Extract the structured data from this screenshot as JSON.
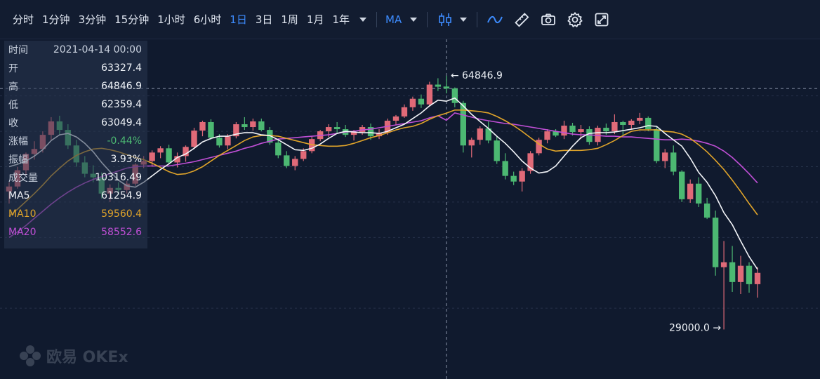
{
  "toolbar": {
    "timeframes": [
      "分时",
      "1分钟",
      "3分钟",
      "15分钟",
      "1小时",
      "6小时",
      "1日",
      "3日",
      "1周",
      "1月",
      "1年"
    ],
    "active_timeframe": "1日",
    "indicator_label": "MA",
    "icons": [
      "chart-type-candle-icon",
      "line-draw-icon",
      "ruler-icon",
      "camera-icon",
      "settings-gear-icon",
      "fullscreen-icon"
    ]
  },
  "info_panel": {
    "time_label": "时间",
    "time_value": "2021-04-14 00:00",
    "open_label": "开",
    "open_value": "63327.4",
    "high_label": "高",
    "high_value": "64846.9",
    "low_label": "低",
    "low_value": "62359.4",
    "close_label": "收",
    "close_value": "63049.4",
    "change_label": "涨幅",
    "change_value": "-0.44%",
    "amplitude_label": "振幅",
    "amplitude_value": "3.93%",
    "volume_label": "成交量",
    "volume_value": "10316.49",
    "ma5_label": "MA5",
    "ma5_value": "61254.9",
    "ma10_label": "MA10",
    "ma10_value": "59560.4",
    "ma20_label": "MA20",
    "ma20_value": "58552.6"
  },
  "chart": {
    "high_annotation": "← 64846.9",
    "low_annotation": "29000.0 →"
  },
  "colors": {
    "up": "#e06a78",
    "down": "#4cb872",
    "ma5": "#f2f4f8",
    "ma10": "#e0a42a",
    "ma20": "#c04fd6",
    "active": "#3d8bfd"
  },
  "watermark": "欧易 OKEx",
  "chart_data": {
    "type": "candlestick",
    "ylim": [
      22000,
      70000
    ],
    "candles": [
      [
        48500,
        49800,
        46800,
        49200
      ],
      [
        49200,
        52000,
        48900,
        51500
      ],
      [
        51500,
        54000,
        50800,
        53800
      ],
      [
        53800,
        55600,
        53000,
        54500
      ],
      [
        54500,
        57000,
        54000,
        56500
      ],
      [
        56500,
        59000,
        55800,
        58400
      ],
      [
        58400,
        59200,
        56500,
        57200
      ],
      [
        57200,
        58000,
        54500,
        55000
      ],
      [
        55000,
        55800,
        52000,
        52600
      ],
      [
        52600,
        53500,
        50500,
        51000
      ],
      [
        51000,
        52200,
        49800,
        50500
      ],
      [
        50500,
        51200,
        47500,
        48200
      ],
      [
        48200,
        49500,
        47000,
        49000
      ],
      [
        49000,
        49800,
        48000,
        48700
      ],
      [
        48700,
        50000,
        48200,
        49600
      ],
      [
        49600,
        52500,
        49300,
        52300
      ],
      [
        52300,
        53500,
        51800,
        52800
      ],
      [
        52800,
        54300,
        52000,
        54000
      ],
      [
        54000,
        54900,
        53200,
        54600
      ],
      [
        54600,
        55100,
        52300,
        52600
      ],
      [
        52600,
        54000,
        51900,
        53500
      ],
      [
        53500,
        55000,
        52700,
        54800
      ],
      [
        54800,
        57500,
        54500,
        57100
      ],
      [
        57100,
        58500,
        56300,
        58300
      ],
      [
        58300,
        58700,
        55800,
        56100
      ],
      [
        56100,
        56600,
        54700,
        55000
      ],
      [
        55000,
        56600,
        54500,
        56300
      ],
      [
        56300,
        58300,
        56000,
        58000
      ],
      [
        58000,
        59000,
        57200,
        57600
      ],
      [
        57600,
        58800,
        57100,
        58400
      ],
      [
        58400,
        58800,
        57000,
        57200
      ],
      [
        57200,
        57600,
        55100,
        55400
      ],
      [
        55400,
        56000,
        53200,
        53600
      ],
      [
        53600,
        54200,
        51800,
        52100
      ],
      [
        52100,
        53500,
        51500,
        53100
      ],
      [
        53100,
        54600,
        52800,
        54200
      ],
      [
        54200,
        56300,
        53900,
        55900
      ],
      [
        55900,
        57200,
        55600,
        57000
      ],
      [
        57000,
        58000,
        56200,
        57600
      ],
      [
        57600,
        58300,
        56800,
        57300
      ],
      [
        57300,
        57900,
        56200,
        56500
      ],
      [
        56500,
        57200,
        55700,
        56900
      ],
      [
        56900,
        57900,
        56500,
        57600
      ],
      [
        57600,
        58100,
        55800,
        56300
      ],
      [
        56300,
        57300,
        55900,
        56800
      ],
      [
        56800,
        58800,
        56500,
        58500
      ],
      [
        58500,
        59300,
        57900,
        59100
      ],
      [
        59100,
        60800,
        58900,
        60400
      ],
      [
        60400,
        61900,
        59900,
        61600
      ],
      [
        61600,
        62200,
        60300,
        60800
      ],
      [
        60800,
        64000,
        60500,
        63600
      ],
      [
        63600,
        64500,
        62700,
        63300
      ],
      [
        63327.4,
        64846.9,
        62359.4,
        63049.4
      ],
      [
        63049,
        63200,
        60400,
        61000
      ],
      [
        61000,
        61300,
        54000,
        55000
      ],
      [
        55000,
        56100,
        53300,
        55800
      ],
      [
        55800,
        57700,
        55100,
        57400
      ],
      [
        57400,
        58400,
        55300,
        55700
      ],
      [
        55700,
        56300,
        52400,
        52800
      ],
      [
        52800,
        53900,
        50200,
        50700
      ],
      [
        50700,
        51300,
        49400,
        49900
      ],
      [
        49900,
        51800,
        48500,
        51400
      ],
      [
        51400,
        54200,
        51000,
        53900
      ],
      [
        53900,
        56100,
        53600,
        55800
      ],
      [
        55800,
        57300,
        55300,
        57000
      ],
      [
        57000,
        57300,
        56200,
        56400
      ],
      [
        56400,
        58500,
        55900,
        57800
      ],
      [
        57800,
        58200,
        56400,
        56900
      ],
      [
        56900,
        57900,
        55900,
        57300
      ],
      [
        57300,
        57700,
        55100,
        55500
      ],
      [
        55500,
        57800,
        55000,
        57500
      ],
      [
        57500,
        58100,
        56500,
        57000
      ],
      [
        57000,
        59400,
        56600,
        58300
      ],
      [
        58300,
        58500,
        56300,
        57900
      ],
      [
        57900,
        58700,
        57300,
        58500
      ],
      [
        58500,
        59600,
        58000,
        58900
      ],
      [
        58900,
        59100,
        57000,
        57300
      ],
      [
        57300,
        57600,
        52500,
        52800
      ],
      [
        52800,
        54500,
        51800,
        54000
      ],
      [
        54000,
        55000,
        50800,
        51300
      ],
      [
        51300,
        51500,
        47000,
        47400
      ],
      [
        47400,
        50200,
        46900,
        49600
      ],
      [
        49600,
        50500,
        46300,
        46800
      ],
      [
        46800,
        47600,
        44600,
        44800
      ],
      [
        44800,
        45800,
        36600,
        37800
      ],
      [
        37800,
        41500,
        29000,
        38500
      ],
      [
        38500,
        40800,
        34300,
        35700
      ],
      [
        35700,
        39400,
        34000,
        38000
      ],
      [
        38000,
        38500,
        34200,
        35400
      ],
      [
        35400,
        37800,
        33500,
        37000
      ]
    ],
    "ma5": [
      52000,
      52350,
      52800,
      53500,
      54400,
      55700,
      56500,
      56700,
      56200,
      55300,
      54100,
      52600,
      51300,
      50100,
      49300,
      49100,
      49800,
      50700,
      51600,
      52400,
      53300,
      53800,
      54600,
      55500,
      56000,
      56300,
      56300,
      56600,
      56800,
      56800,
      56500,
      56400,
      55800,
      55100,
      54400,
      54300,
      54600,
      55200,
      56000,
      56700,
      57000,
      56900,
      56800,
      56800,
      56700,
      57000,
      57500,
      58000,
      58800,
      59600,
      60600,
      61400,
      61254.9,
      61700,
      60600,
      59400,
      58400,
      57400,
      56300,
      55300,
      54100,
      52800,
      51800,
      51100,
      51300,
      52100,
      53500,
      54900,
      56100,
      56700,
      56800,
      56800,
      56900,
      57100,
      57300,
      57500,
      57800,
      57700,
      56700,
      55800,
      54900,
      53200,
      51200,
      49800,
      47900,
      45500,
      43800,
      41500,
      39300,
      37500
    ],
    "ma10": [
      45000,
      46000,
      47100,
      48200,
      49400,
      50700,
      51800,
      52800,
      53600,
      54100,
      54500,
      54600,
      54400,
      54100,
      53700,
      53300,
      53000,
      52500,
      51900,
      51300,
      50900,
      51000,
      51400,
      52000,
      52800,
      53600,
      54300,
      55000,
      55700,
      56200,
      56400,
      56400,
      56300,
      56000,
      55700,
      55400,
      55100,
      55000,
      54900,
      54900,
      55000,
      55300,
      55700,
      56100,
      56400,
      56800,
      57200,
      57500,
      57700,
      58100,
      58700,
      59200,
      59560.4,
      60000,
      60000,
      59900,
      59800,
      59600,
      59100,
      58500,
      57800,
      57000,
      56100,
      55200,
      54500,
      54200,
      54300,
      54300,
      54300,
      54400,
      54600,
      55100,
      55700,
      56400,
      57000,
      57200,
      57200,
      57200,
      57000,
      56900,
      56600,
      56000,
      55100,
      54100,
      52900,
      51600,
      50100,
      48500,
      46800,
      45200
    ],
    "ma20": [
      42000,
      42800,
      43700,
      44700,
      45700,
      46700,
      47600,
      48400,
      49100,
      49700,
      50200,
      50600,
      51000,
      51400,
      51800,
      52000,
      52100,
      52100,
      52100,
      52100,
      52300,
      52500,
      52700,
      53000,
      53300,
      53600,
      53900,
      54200,
      54600,
      54900,
      55300,
      55600,
      55900,
      56000,
      56100,
      56200,
      56300,
      56400,
      56500,
      56700,
      56900,
      57000,
      57200,
      57300,
      57500,
      57700,
      57900,
      58100,
      58300,
      58500,
      58900,
      59200,
      58552.6,
      59600,
      59300,
      59000,
      58700,
      58500,
      58300,
      58100,
      58000,
      57800,
      57600,
      57400,
      57200,
      57000,
      56800,
      56600,
      56500,
      56500,
      56400,
      56300,
      56300,
      56200,
      56200,
      56100,
      56000,
      55900,
      55800,
      55800,
      55900,
      55800,
      55600,
      55300,
      54900,
      54200,
      53300,
      52200,
      51000,
      49700
    ]
  }
}
